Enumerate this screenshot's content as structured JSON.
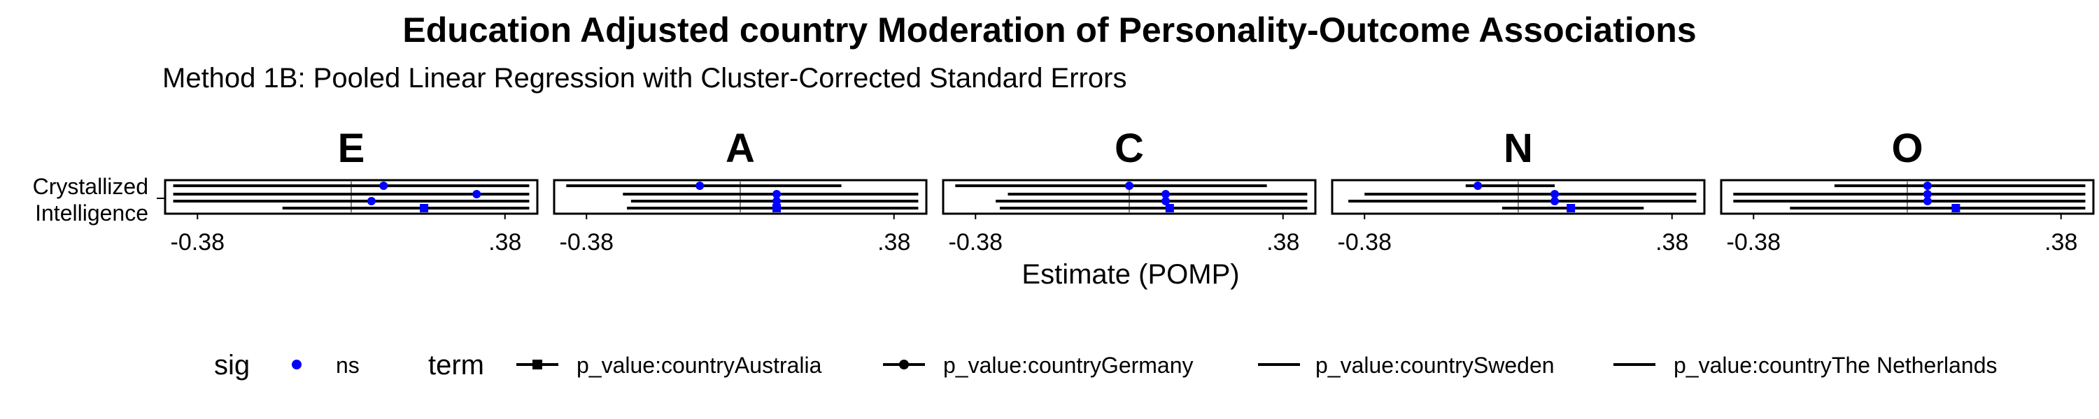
{
  "title": "Education Adjusted country Moderation of Personality-Outcome Associations",
  "subtitle": "Method 1B: Pooled Linear Regression with Cluster-Corrected Standard Errors",
  "chart_data": {
    "type": "forest",
    "x_label": "Estimate (POMP)",
    "y_categories": [
      "Crystallized\nIntelligence"
    ],
    "x_ticks": [
      -0.38,
      0.38
    ],
    "x_tick_labels": [
      "-0.38",
      ".38"
    ],
    "xlim": [
      -0.46,
      0.46
    ],
    "reference_line": 0,
    "panels": [
      {
        "name": "E",
        "rows": [
          {
            "term": "p_value:countrySweden",
            "estimate": 0.08,
            "low": -0.44,
            "high": 0.44
          },
          {
            "term": "p_value:countryGermany",
            "estimate": 0.31,
            "low": -0.44,
            "high": 0.44
          },
          {
            "term": "p_value:countryThe Netherlands",
            "estimate": 0.05,
            "low": -0.44,
            "high": 0.44
          },
          {
            "term": "p_value:countryAustralia",
            "estimate": 0.18,
            "low": -0.17,
            "high": 0.44
          }
        ]
      },
      {
        "name": "A",
        "rows": [
          {
            "term": "p_value:countrySweden",
            "estimate": -0.1,
            "low": -0.43,
            "high": 0.25
          },
          {
            "term": "p_value:countryGermany",
            "estimate": 0.09,
            "low": -0.29,
            "high": 0.44
          },
          {
            "term": "p_value:countryThe Netherlands",
            "estimate": 0.09,
            "low": -0.27,
            "high": 0.44
          },
          {
            "term": "p_value:countryAustralia",
            "estimate": 0.09,
            "low": -0.28,
            "high": 0.44
          }
        ]
      },
      {
        "name": "C",
        "rows": [
          {
            "term": "p_value:countrySweden",
            "estimate": 0.0,
            "low": -0.43,
            "high": 0.34
          },
          {
            "term": "p_value:countryGermany",
            "estimate": 0.09,
            "low": -0.3,
            "high": 0.44
          },
          {
            "term": "p_value:countryThe Netherlands",
            "estimate": 0.09,
            "low": -0.33,
            "high": 0.44
          },
          {
            "term": "p_value:countryAustralia",
            "estimate": 0.1,
            "low": -0.32,
            "high": 0.44
          }
        ]
      },
      {
        "name": "N",
        "rows": [
          {
            "term": "p_value:countrySweden",
            "estimate": -0.1,
            "low": -0.13,
            "high": 0.09
          },
          {
            "term": "p_value:countryGermany",
            "estimate": 0.09,
            "low": -0.38,
            "high": 0.44
          },
          {
            "term": "p_value:countryThe Netherlands",
            "estimate": 0.09,
            "low": -0.42,
            "high": 0.44
          },
          {
            "term": "p_value:countryAustralia",
            "estimate": 0.13,
            "low": -0.04,
            "high": 0.31
          }
        ]
      },
      {
        "name": "O",
        "rows": [
          {
            "term": "p_value:countrySweden",
            "estimate": 0.05,
            "low": -0.18,
            "high": 0.44
          },
          {
            "term": "p_value:countryGermany",
            "estimate": 0.05,
            "low": -0.43,
            "high": 0.44
          },
          {
            "term": "p_value:countryThe Netherlands",
            "estimate": 0.05,
            "low": -0.43,
            "high": 0.44
          },
          {
            "term": "p_value:countryAustralia",
            "estimate": 0.12,
            "low": -0.29,
            "high": 0.44
          }
        ]
      }
    ],
    "legend": {
      "position": "bottom",
      "sig": {
        "title": "sig",
        "items": [
          {
            "label": "ns",
            "color": "#0000ff"
          }
        ]
      },
      "term": {
        "title": "term",
        "items": [
          {
            "label": "p_value:countryAustralia",
            "shape": "square"
          },
          {
            "label": "p_value:countryGermany",
            "shape": "circle"
          },
          {
            "label": "p_value:countrySweden",
            "shape": "none"
          },
          {
            "label": "p_value:countryThe Netherlands",
            "shape": "none"
          }
        ]
      }
    },
    "point_color": "#0000ff",
    "line_color": "#000000",
    "reference_line_color": "#808080"
  }
}
